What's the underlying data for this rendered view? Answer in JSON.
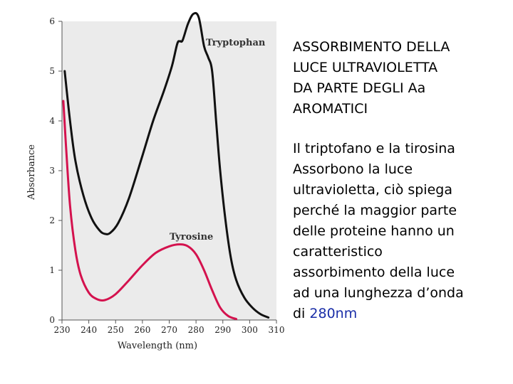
{
  "side_panel": {
    "title_lines": [
      "ASSORBIMENTO DELLA",
      "LUCE ULTRAVIOLETTA",
      "DA PARTE DEGLI Aa",
      "AROMATICI"
    ],
    "body_lines": [
      "Il triptofano e la tirosina",
      "Assorbono la luce",
      "ultravioletta, ciò spiega",
      "perché la maggior parte",
      "delle proteine hanno un",
      "caratteristico",
      "assorbimento della luce",
      "ad una lunghezza d’onda"
    ],
    "last_line_prefix": "di ",
    "last_line_highlight": "280nm",
    "highlight_color": "#1a2ea8"
  },
  "chart_data": {
    "type": "line",
    "xlabel": "Wavelength (nm)",
    "ylabel": "Absorbance",
    "xlim": [
      230,
      310
    ],
    "ylim": [
      0,
      6
    ],
    "x_ticks": [
      230,
      240,
      250,
      260,
      270,
      280,
      290,
      300,
      310
    ],
    "y_ticks": [
      0,
      1,
      2,
      3,
      4,
      5,
      6
    ],
    "plot_background": "#ebebeb",
    "series": [
      {
        "name": "Tryptophan",
        "color": "#111111",
        "points": [
          [
            231,
            5.0
          ],
          [
            233,
            4.0
          ],
          [
            235,
            3.2
          ],
          [
            238,
            2.5
          ],
          [
            241,
            2.05
          ],
          [
            244,
            1.8
          ],
          [
            246,
            1.73
          ],
          [
            248,
            1.75
          ],
          [
            251,
            1.95
          ],
          [
            255,
            2.45
          ],
          [
            260,
            3.3
          ],
          [
            264,
            4.0
          ],
          [
            268,
            4.6
          ],
          [
            271,
            5.1
          ],
          [
            273,
            5.55
          ],
          [
            274,
            5.6
          ],
          [
            275,
            5.62
          ],
          [
            277,
            5.95
          ],
          [
            279,
            6.15
          ],
          [
            281,
            6.08
          ],
          [
            283,
            5.5
          ],
          [
            284.5,
            5.28
          ],
          [
            286,
            5.0
          ],
          [
            287.5,
            4.0
          ],
          [
            289,
            3.0
          ],
          [
            291,
            2.0
          ],
          [
            293,
            1.25
          ],
          [
            295,
            0.8
          ],
          [
            298,
            0.45
          ],
          [
            301,
            0.25
          ],
          [
            304,
            0.12
          ],
          [
            307,
            0.05
          ]
        ]
      },
      {
        "name": "Tyrosine",
        "color": "#d4124e",
        "points": [
          [
            230.5,
            4.4
          ],
          [
            231.5,
            3.5
          ],
          [
            233,
            2.3
          ],
          [
            235,
            1.4
          ],
          [
            237,
            0.9
          ],
          [
            240,
            0.55
          ],
          [
            243,
            0.42
          ],
          [
            246,
            0.4
          ],
          [
            250,
            0.52
          ],
          [
            255,
            0.8
          ],
          [
            260,
            1.1
          ],
          [
            265,
            1.35
          ],
          [
            270,
            1.48
          ],
          [
            274,
            1.52
          ],
          [
            277,
            1.48
          ],
          [
            280,
            1.32
          ],
          [
            283,
            1.0
          ],
          [
            286,
            0.6
          ],
          [
            289,
            0.25
          ],
          [
            292,
            0.08
          ],
          [
            295,
            0.02
          ]
        ]
      }
    ]
  }
}
